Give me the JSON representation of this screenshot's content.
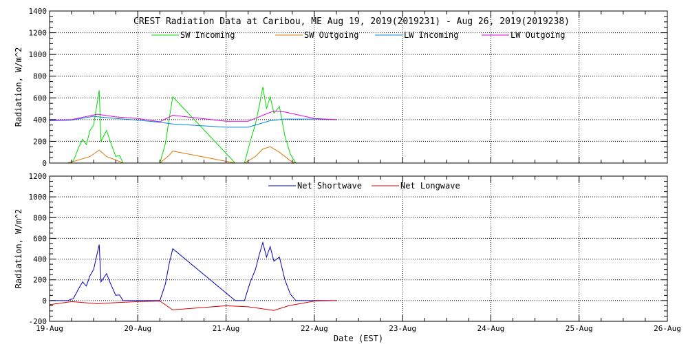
{
  "chart_data": [
    {
      "type": "line",
      "title": "CREST Radiation Data at Caribou, ME   Aug 19, 2019(2019231) - Aug 26, 2019(2019238)",
      "xlabel": "",
      "ylabel": "Radiation, W/m^2",
      "xlim": [
        "2019-08-19",
        "2019-08-26"
      ],
      "ylim": [
        0,
        1400
      ],
      "yticks": [
        0,
        200,
        400,
        600,
        800,
        1000,
        1200,
        1400
      ],
      "grid": true,
      "legend_position": "top",
      "series": [
        {
          "name": "SW Incoming",
          "color": "#00dd00",
          "points": [
            [
              "2019-08-19 00:00",
              0
            ],
            [
              "2019-08-19 05:00",
              0
            ],
            [
              "2019-08-19 06:30",
              20
            ],
            [
              "2019-08-19 08:00",
              150
            ],
            [
              "2019-08-19 09:00",
              220
            ],
            [
              "2019-08-19 10:00",
              170
            ],
            [
              "2019-08-19 11:00",
              300
            ],
            [
              "2019-08-19 12:00",
              350
            ],
            [
              "2019-08-19 13:30",
              670
            ],
            [
              "2019-08-19 14:00",
              200
            ],
            [
              "2019-08-19 15:30",
              300
            ],
            [
              "2019-08-19 16:30",
              200
            ],
            [
              "2019-08-19 18:00",
              60
            ],
            [
              "2019-08-19 19:00",
              70
            ],
            [
              "2019-08-19 20:00",
              0
            ],
            [
              "2019-08-20 06:00",
              0
            ],
            [
              "2019-08-20 07:30",
              180
            ],
            [
              "2019-08-20 08:30",
              400
            ],
            [
              "2019-08-20 09:30",
              610
            ],
            [
              "2019-08-21 02:30",
              0
            ],
            [
              "2019-08-21 05:00",
              0
            ],
            [
              "2019-08-21 06:30",
              190
            ],
            [
              "2019-08-21 08:00",
              360
            ],
            [
              "2019-08-21 09:00",
              520
            ],
            [
              "2019-08-21 10:00",
              700
            ],
            [
              "2019-08-21 11:00",
              500
            ],
            [
              "2019-08-21 12:00",
              610
            ],
            [
              "2019-08-21 13:00",
              460
            ],
            [
              "2019-08-21 14:30",
              520
            ],
            [
              "2019-08-21 16:00",
              250
            ],
            [
              "2019-08-21 17:30",
              80
            ],
            [
              "2019-08-21 19:00",
              0
            ]
          ]
        },
        {
          "name": "SW Outgoing",
          "color": "#dd7700",
          "points": [
            [
              "2019-08-19 00:00",
              0
            ],
            [
              "2019-08-19 05:00",
              0
            ],
            [
              "2019-08-19 08:00",
              30
            ],
            [
              "2019-08-19 11:00",
              60
            ],
            [
              "2019-08-19 13:30",
              120
            ],
            [
              "2019-08-19 15:30",
              60
            ],
            [
              "2019-08-19 19:00",
              15
            ],
            [
              "2019-08-19 20:00",
              0
            ],
            [
              "2019-08-20 06:00",
              0
            ],
            [
              "2019-08-20 08:30",
              70
            ],
            [
              "2019-08-20 09:30",
              110
            ],
            [
              "2019-08-21 02:30",
              0
            ],
            [
              "2019-08-21 05:00",
              0
            ],
            [
              "2019-08-21 08:00",
              60
            ],
            [
              "2019-08-21 10:00",
              130
            ],
            [
              "2019-08-21 12:00",
              150
            ],
            [
              "2019-08-21 14:30",
              100
            ],
            [
              "2019-08-21 17:30",
              20
            ],
            [
              "2019-08-21 19:00",
              0
            ]
          ]
        },
        {
          "name": "LW Incoming",
          "color": "#0088dd",
          "points": [
            [
              "2019-08-19 00:00",
              390
            ],
            [
              "2019-08-19 06:00",
              395
            ],
            [
              "2019-08-19 12:00",
              430
            ],
            [
              "2019-08-19 18:00",
              410
            ],
            [
              "2019-08-20 00:00",
              395
            ],
            [
              "2019-08-20 06:00",
              375
            ],
            [
              "2019-08-20 09:30",
              360
            ],
            [
              "2019-08-21 00:00",
              330
            ],
            [
              "2019-08-21 06:00",
              330
            ],
            [
              "2019-08-21 12:00",
              390
            ],
            [
              "2019-08-21 16:00",
              405
            ],
            [
              "2019-08-22 00:00",
              405
            ],
            [
              "2019-08-22 06:00",
              400
            ]
          ]
        },
        {
          "name": "LW Outgoing",
          "color": "#dd00dd",
          "points": [
            [
              "2019-08-19 00:00",
              395
            ],
            [
              "2019-08-19 06:00",
              400
            ],
            [
              "2019-08-19 13:00",
              450
            ],
            [
              "2019-08-19 18:00",
              425
            ],
            [
              "2019-08-20 00:00",
              410
            ],
            [
              "2019-08-20 06:00",
              380
            ],
            [
              "2019-08-20 09:30",
              440
            ],
            [
              "2019-08-21 00:00",
              385
            ],
            [
              "2019-08-21 06:00",
              385
            ],
            [
              "2019-08-21 13:00",
              480
            ],
            [
              "2019-08-21 16:00",
              470
            ],
            [
              "2019-08-22 00:00",
              410
            ],
            [
              "2019-08-22 06:00",
              400
            ]
          ]
        }
      ]
    },
    {
      "type": "line",
      "title": "",
      "xlabel": "Date (EST)",
      "ylabel": "Radiation, W/m^2",
      "xlim": [
        "2019-08-19",
        "2019-08-26"
      ],
      "ylim": [
        -200,
        1200
      ],
      "yticks": [
        -200,
        0,
        200,
        400,
        600,
        800,
        1000,
        1200
      ],
      "xticks": [
        "19-Aug",
        "20-Aug",
        "21-Aug",
        "22-Aug",
        "23-Aug",
        "24-Aug",
        "25-Aug",
        "26-Aug"
      ],
      "grid": true,
      "legend_position": "top",
      "series": [
        {
          "name": "Net Shortwave",
          "color": "#0000bb",
          "points": [
            [
              "2019-08-19 00:00",
              0
            ],
            [
              "2019-08-19 05:00",
              0
            ],
            [
              "2019-08-19 06:30",
              20
            ],
            [
              "2019-08-19 08:00",
              120
            ],
            [
              "2019-08-19 09:00",
              180
            ],
            [
              "2019-08-19 10:00",
              140
            ],
            [
              "2019-08-19 11:00",
              240
            ],
            [
              "2019-08-19 12:00",
              300
            ],
            [
              "2019-08-19 13:30",
              540
            ],
            [
              "2019-08-19 14:00",
              180
            ],
            [
              "2019-08-19 15:30",
              260
            ],
            [
              "2019-08-19 16:30",
              170
            ],
            [
              "2019-08-19 18:00",
              50
            ],
            [
              "2019-08-19 19:00",
              55
            ],
            [
              "2019-08-19 20:00",
              0
            ],
            [
              "2019-08-20 06:00",
              0
            ],
            [
              "2019-08-20 07:30",
              160
            ],
            [
              "2019-08-20 08:30",
              350
            ],
            [
              "2019-08-20 09:30",
              500
            ],
            [
              "2019-08-21 02:30",
              0
            ],
            [
              "2019-08-21 05:00",
              0
            ],
            [
              "2019-08-21 06:30",
              170
            ],
            [
              "2019-08-21 08:00",
              300
            ],
            [
              "2019-08-21 09:00",
              440
            ],
            [
              "2019-08-21 10:00",
              560
            ],
            [
              "2019-08-21 11:00",
              420
            ],
            [
              "2019-08-21 12:00",
              520
            ],
            [
              "2019-08-21 13:00",
              380
            ],
            [
              "2019-08-21 14:30",
              420
            ],
            [
              "2019-08-21 16:00",
              200
            ],
            [
              "2019-08-21 17:30",
              60
            ],
            [
              "2019-08-21 19:00",
              0
            ],
            [
              "2019-08-22 06:00",
              0
            ]
          ]
        },
        {
          "name": "Net Longwave",
          "color": "#dd0000",
          "points": [
            [
              "2019-08-19 00:00",
              -40
            ],
            [
              "2019-08-19 06:00",
              -10
            ],
            [
              "2019-08-19 13:00",
              -30
            ],
            [
              "2019-08-19 18:00",
              -20
            ],
            [
              "2019-08-20 00:00",
              -10
            ],
            [
              "2019-08-20 06:00",
              -5
            ],
            [
              "2019-08-20 09:30",
              -90
            ],
            [
              "2019-08-21 00:00",
              -50
            ],
            [
              "2019-08-21 06:00",
              -60
            ],
            [
              "2019-08-21 13:00",
              -95
            ],
            [
              "2019-08-21 17:00",
              -50
            ],
            [
              "2019-08-22 00:00",
              -5
            ],
            [
              "2019-08-22 06:00",
              0
            ]
          ]
        }
      ]
    }
  ]
}
